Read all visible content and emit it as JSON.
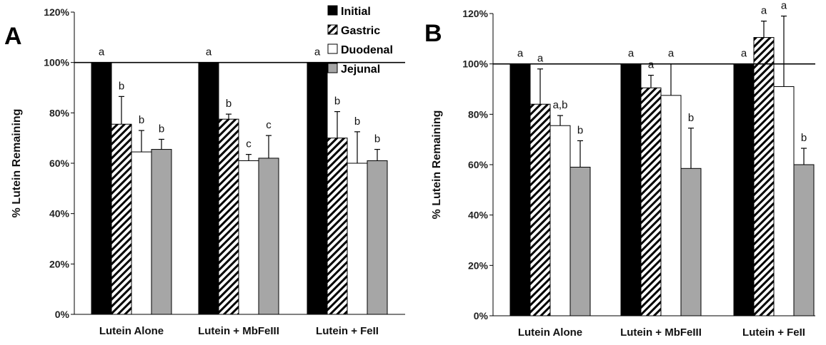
{
  "chart_data": [
    {
      "type": "bar",
      "panel_label": "A",
      "ylabel": "% Lutein Remaining",
      "xlabel": "",
      "ylim": [
        0,
        1.2
      ],
      "yticks": [
        "0%",
        "20%",
        "40%",
        "60%",
        "80%",
        "100%",
        "120%"
      ],
      "reference_line": 1.0,
      "categories": [
        "Lutein Alone",
        "Lutein + MbFeIII",
        "Lutein + FeII"
      ],
      "series": [
        {
          "name": "Initial",
          "values": [
            1.0,
            1.0,
            1.0
          ],
          "errors": [
            0.0,
            0.0,
            0.0
          ],
          "letters": [
            "a",
            "a",
            "a"
          ]
        },
        {
          "name": "Gastric",
          "values": [
            0.755,
            0.775,
            0.7
          ],
          "errors": [
            0.11,
            0.02,
            0.105
          ],
          "letters": [
            "b",
            "b",
            "b"
          ]
        },
        {
          "name": "Duodenal",
          "values": [
            0.645,
            0.61,
            0.6
          ],
          "errors": [
            0.085,
            0.025,
            0.125
          ],
          "letters": [
            "b",
            "c",
            "b"
          ]
        },
        {
          "name": "Jejunal",
          "values": [
            0.655,
            0.62,
            0.61
          ],
          "errors": [
            0.04,
            0.09,
            0.045
          ],
          "letters": [
            "b",
            "c",
            "b"
          ]
        }
      ],
      "legend": {
        "placement": "top-right",
        "entries": [
          "Initial",
          "Gastric",
          "Duodenal",
          "Jejunal"
        ]
      }
    },
    {
      "type": "bar",
      "panel_label": "B",
      "ylabel": "% Lutein Remaining",
      "xlabel": "",
      "ylim": [
        0,
        1.2
      ],
      "yticks": [
        "0%",
        "20%",
        "40%",
        "60%",
        "80%",
        "100%",
        "120%"
      ],
      "reference_line": 1.0,
      "categories": [
        "Lutein Alone",
        "Lutein + MbFeIII",
        "Lutein + FeII"
      ],
      "series": [
        {
          "name": "Initial",
          "values": [
            1.0,
            1.0,
            1.0
          ],
          "errors": [
            0.0,
            0.0,
            0.0
          ],
          "letters": [
            "a",
            "a",
            "a"
          ]
        },
        {
          "name": "Gastric",
          "values": [
            0.84,
            0.905,
            1.105
          ],
          "errors": [
            0.14,
            0.05,
            0.065
          ],
          "letters": [
            "a",
            "a",
            "a"
          ]
        },
        {
          "name": "Duodenal",
          "values": [
            0.755,
            0.875,
            0.91
          ],
          "errors": [
            0.04,
            0.125,
            0.28
          ],
          "letters": [
            "a,b",
            "a",
            "a"
          ]
        },
        {
          "name": "Jejunal",
          "values": [
            0.59,
            0.585,
            0.6
          ],
          "errors": [
            0.105,
            0.16,
            0.065
          ],
          "letters": [
            "b",
            "b",
            "b"
          ]
        }
      ]
    }
  ],
  "colors": {
    "initial": "#000000",
    "gastric": "#ffffff",
    "duodenal": "#ffffff",
    "jejunal": "#a6a6a6",
    "outline": "#000000"
  }
}
